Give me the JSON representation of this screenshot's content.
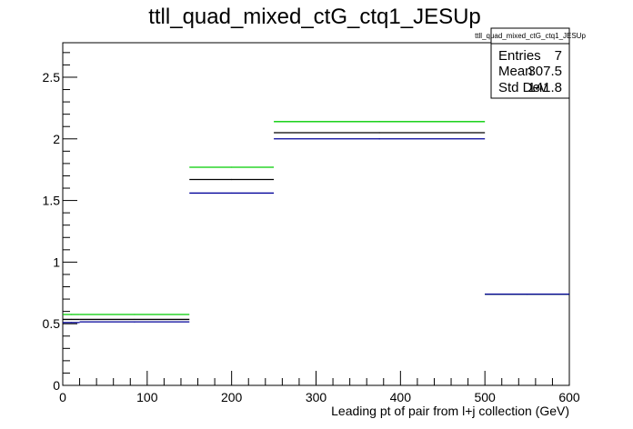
{
  "chart_data": {
    "type": "line",
    "title": "ttll_quad_mixed_ctG_ctq1_JESUp",
    "xlabel": "Leading pt of pair from l+j collection (GeV)",
    "ylabel": "",
    "xlim": [
      0,
      600
    ],
    "ylim": [
      0,
      2.78
    ],
    "xticks": [
      0,
      100,
      200,
      300,
      400,
      500,
      600
    ],
    "xtick_labels": [
      "0",
      "100",
      "200",
      "300",
      "400",
      "500",
      "600"
    ],
    "yticks": [
      0,
      0.5,
      1,
      1.5,
      2,
      2.5
    ],
    "ytick_labels": [
      "0",
      "0.5",
      "1",
      "1.5",
      "2",
      "2.5"
    ],
    "grid": false,
    "bin_edges": [
      0,
      20,
      150,
      250,
      500,
      600
    ],
    "series": [
      {
        "color": "#00cc00",
        "values": [
          0.575,
          0.575,
          1.77,
          2.14,
          0.74
        ]
      },
      {
        "color": "#000000",
        "values": [
          0.535,
          0.535,
          1.67,
          2.05,
          0.74
        ]
      },
      {
        "color": "#000099",
        "values": [
          0.51,
          0.515,
          1.56,
          2.0,
          0.74
        ]
      }
    ],
    "stats_box": {
      "title": "ttll_quad_mixed_ctG_ctq1_JESUp",
      "rows": [
        {
          "label": "Entries",
          "value": "7"
        },
        {
          "label": "Mean",
          "value": "307.5"
        },
        {
          "label": "Std Dev",
          "value": "141.8"
        }
      ]
    }
  }
}
